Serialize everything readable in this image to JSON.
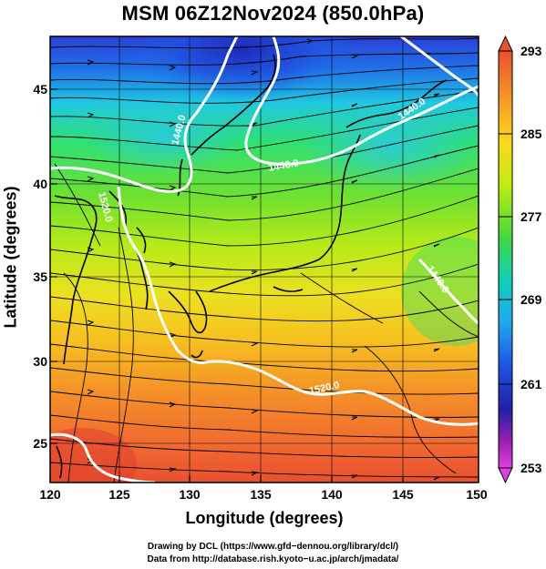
{
  "title": "MSM 06Z12Nov2024 (850.0hPa)",
  "axes": {
    "xlabel": "Longitude (degrees)",
    "ylabel": "Latitude  (degrees)",
    "xticks": [
      "120",
      "125",
      "130",
      "135",
      "140",
      "145",
      "150"
    ],
    "yticks": [
      "25",
      "30",
      "35",
      "40",
      "45"
    ]
  },
  "colorbar": {
    "labels": [
      "293",
      "285",
      "277",
      "269",
      "261",
      "253"
    ],
    "colors": [
      "#e0503a",
      "#f29a2a",
      "#ffe020",
      "#c8ee10",
      "#58e028",
      "#10d4a8",
      "#20b4f0",
      "#2050e8",
      "#2020b0",
      "#8020a0",
      "#e040e0"
    ]
  },
  "contour_labels": [
    "1440.0",
    "1440.0",
    "1440.0",
    "1440.0",
    "1520.0",
    "1520.0"
  ],
  "credits": {
    "line1": "Drawing by DCL (https://www.gfd−dennou.org/library/dcl/)",
    "line2": "Data from http://database.rish.kyoto−u.ac.jp/arch/jmadata/"
  }
}
